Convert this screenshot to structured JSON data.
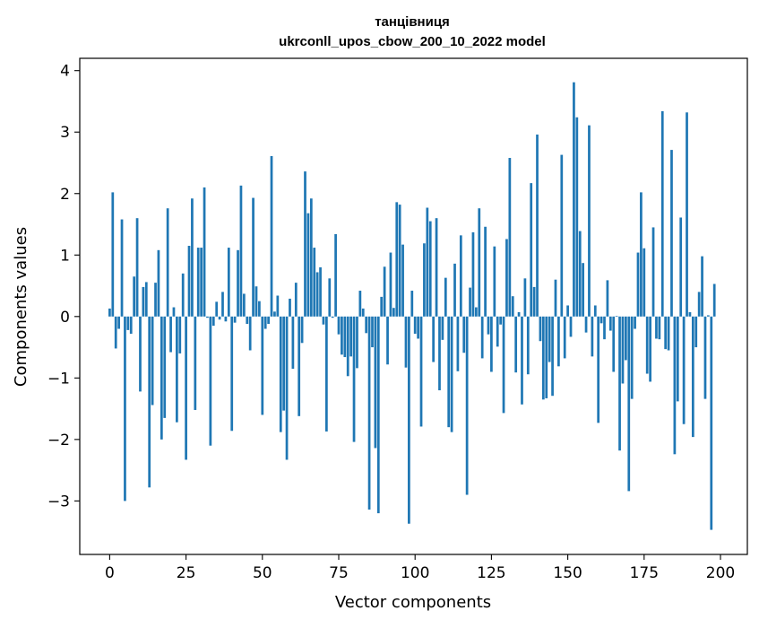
{
  "chart_data": {
    "type": "bar",
    "title_line1": "танцівниця",
    "title_line2": "ukrconll_upos_cbow_200_10_2022 model",
    "xlabel": "Vector components",
    "ylabel": "Components values",
    "xlim": [
      -9.8,
      208.8
    ],
    "ylim": [
      -3.87,
      4.2
    ],
    "xticks": [
      0,
      25,
      50,
      75,
      100,
      125,
      150,
      175,
      200
    ],
    "yticks": [
      -3,
      -2,
      -1,
      0,
      1,
      2,
      3,
      4
    ],
    "bar_color": "#1f77b4",
    "values": [
      0.13,
      2.02,
      -0.52,
      -0.2,
      1.58,
      -3.0,
      -0.22,
      -0.28,
      0.65,
      1.6,
      -1.22,
      0.48,
      0.56,
      -2.78,
      -1.44,
      0.55,
      1.08,
      -2.0,
      -1.65,
      1.76,
      -0.58,
      0.15,
      -1.72,
      -0.6,
      0.7,
      -2.33,
      1.15,
      1.92,
      -1.52,
      1.12,
      1.12,
      2.1,
      -0.02,
      -2.1,
      -0.15,
      0.24,
      -0.05,
      0.4,
      -0.08,
      1.12,
      -1.86,
      -0.1,
      1.08,
      2.13,
      0.37,
      -0.12,
      -0.55,
      1.93,
      0.49,
      0.25,
      -1.6,
      -0.2,
      -0.12,
      2.61,
      0.08,
      0.34,
      -1.88,
      -1.53,
      -2.33,
      0.29,
      -0.85,
      0.55,
      -1.62,
      -0.43,
      2.36,
      1.68,
      1.92,
      1.12,
      0.72,
      0.8,
      -0.13,
      -1.87,
      0.62,
      -0.02,
      1.34,
      -0.29,
      -0.62,
      -0.66,
      -0.97,
      -0.65,
      -2.04,
      -0.84,
      0.42,
      0.13,
      -0.27,
      -3.14,
      -0.5,
      -2.14,
      -3.2,
      0.32,
      0.81,
      -0.78,
      1.04,
      0.14,
      1.86,
      1.82,
      1.17,
      -0.83,
      -3.37,
      0.42,
      -0.28,
      -0.36,
      -1.79,
      1.19,
      1.77,
      1.55,
      -0.74,
      1.6,
      -1.2,
      -0.38,
      0.63,
      -1.8,
      -1.88,
      0.86,
      -0.89,
      1.32,
      -0.59,
      -2.9,
      0.47,
      1.37,
      0.15,
      1.76,
      -0.68,
      1.46,
      -0.29,
      -0.9,
      1.14,
      -0.49,
      -0.13,
      -1.57,
      1.26,
      2.58,
      0.33,
      -0.91,
      0.07,
      -1.43,
      0.62,
      -0.94,
      2.17,
      0.48,
      2.96,
      -0.4,
      -1.35,
      -1.33,
      -0.74,
      -1.29,
      0.6,
      -0.81,
      2.63,
      -0.68,
      0.18,
      -0.33,
      3.81,
      3.24,
      1.39,
      0.87,
      -0.26,
      3.11,
      -0.65,
      0.18,
      -1.73,
      -0.11,
      -0.37,
      0.59,
      -0.23,
      -0.9,
      0.01,
      -2.18,
      -1.09,
      -0.71,
      -2.84,
      -1.34,
      -0.2,
      1.04,
      2.02,
      1.11,
      -0.93,
      -1.06,
      1.45,
      -0.36,
      -0.37,
      3.34,
      -0.53,
      -0.55,
      2.71,
      -2.24,
      -1.38,
      1.61,
      -1.75,
      3.32,
      0.07,
      -1.96,
      -0.5,
      0.4,
      0.98,
      -1.34,
      0.02,
      -3.47,
      0.53
    ]
  }
}
